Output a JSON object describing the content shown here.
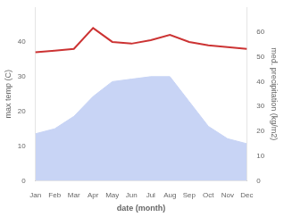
{
  "chart_data": {
    "type": "line",
    "xlabel": "date (month)",
    "ylabel": "max temp (C)",
    "y2label": "med. precipitation (kg/m2)",
    "categories": [
      "Jan",
      "Feb",
      "Mar",
      "Apr",
      "May",
      "Jun",
      "Jul",
      "Aug",
      "Sep",
      "Oct",
      "Nov",
      "Dec"
    ],
    "series": [
      {
        "type": "line",
        "color": "#cc3333",
        "values": [
          37,
          37.5,
          38,
          44,
          40,
          39.5,
          40.5,
          42,
          40,
          39,
          38.5,
          38
        ]
      },
      {
        "type": "area",
        "axis": "y2",
        "color": "#c8d4f5",
        "values": [
          19,
          21,
          26,
          34,
          40,
          41,
          42,
          42,
          32,
          22,
          17,
          15
        ]
      }
    ],
    "ylim": [
      0,
      50
    ],
    "yticks": [
      0,
      10,
      20,
      30,
      40
    ],
    "y2lim": [
      0,
      70
    ],
    "y2ticks": [
      0,
      10,
      20,
      30,
      40,
      50,
      60
    ],
    "grid": false
  }
}
